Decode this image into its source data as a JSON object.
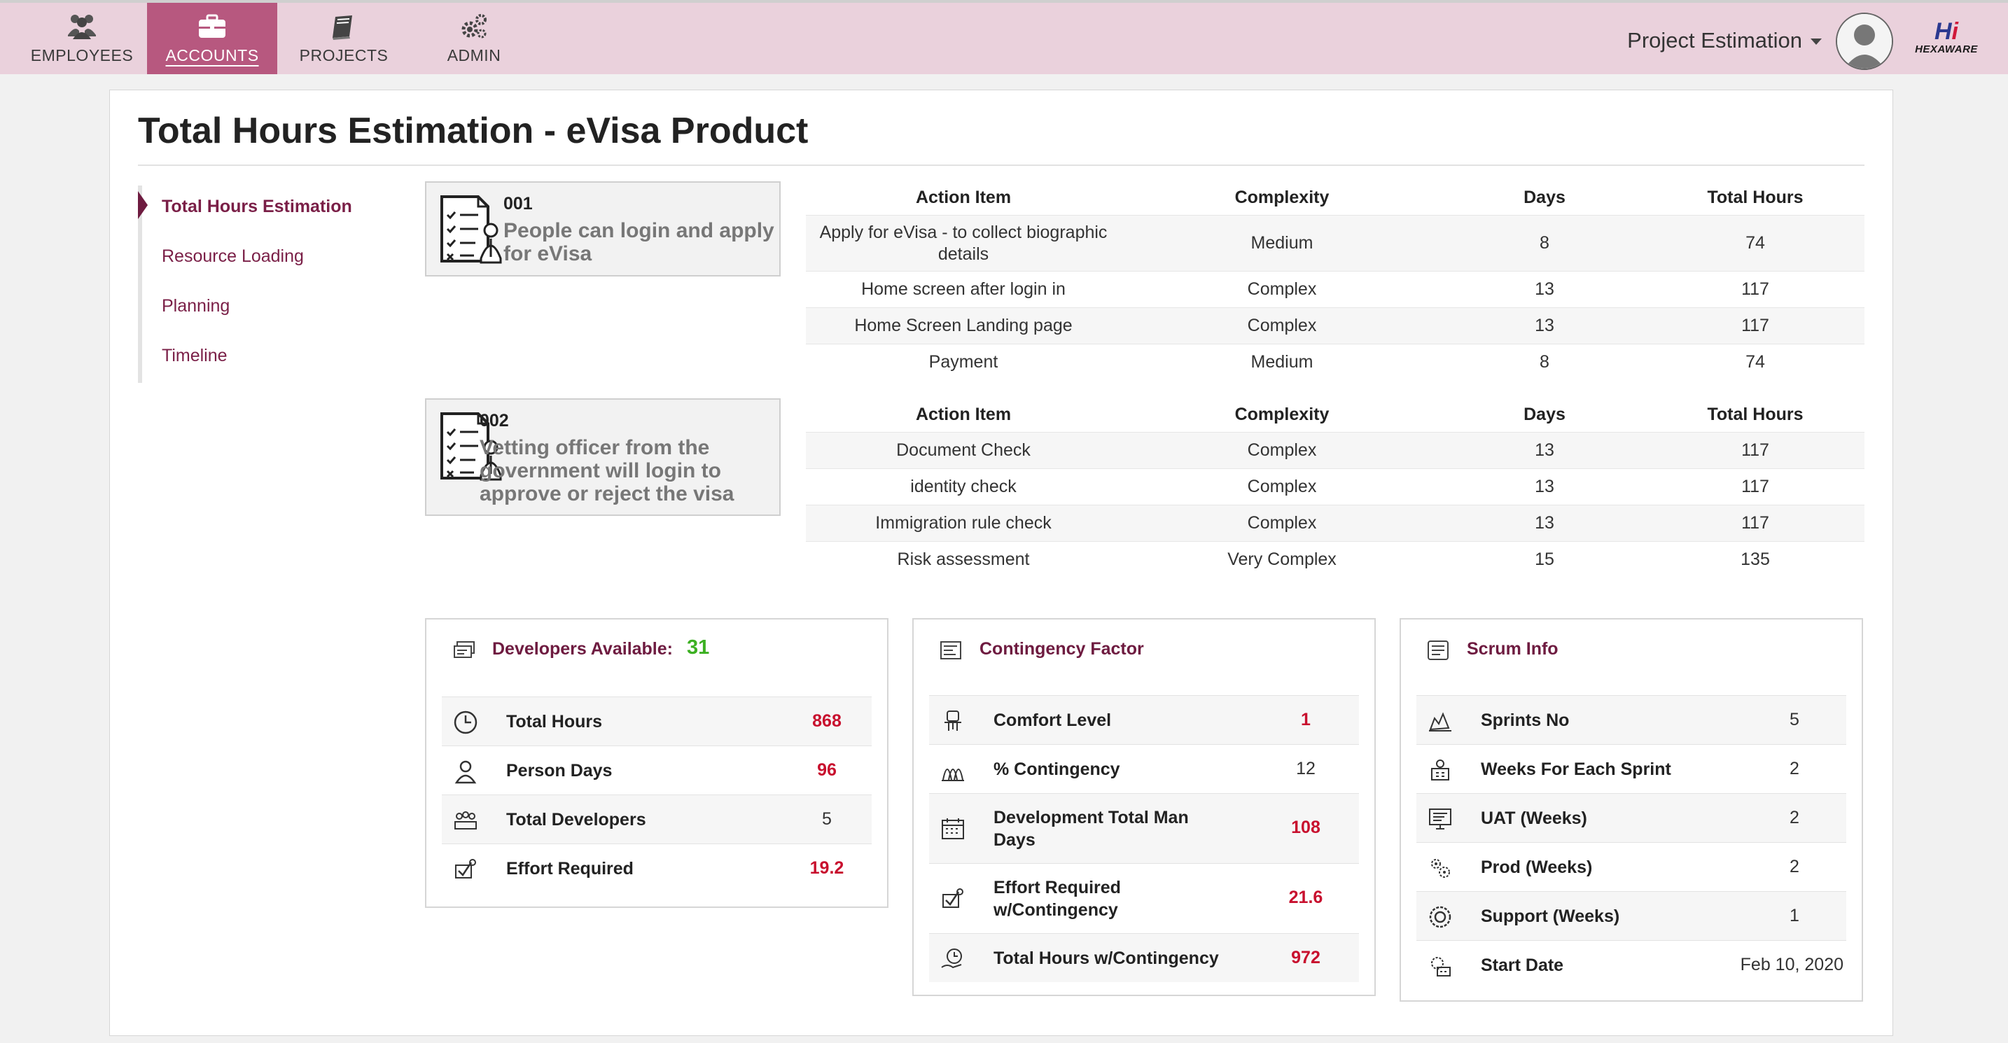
{
  "nav": {
    "tabs": [
      {
        "label": "EMPLOYEES",
        "icon": "people-icon"
      },
      {
        "label": "ACCOUNTS",
        "icon": "briefcase-icon",
        "active": true
      },
      {
        "label": "PROJECTS",
        "icon": "book-icon"
      },
      {
        "label": "ADMIN",
        "icon": "gears-icon"
      }
    ],
    "project_select": "Project Estimation",
    "logo": {
      "mark_h": "H",
      "mark_i": "i",
      "text": "HEXAWARE"
    }
  },
  "page": {
    "title": "Total Hours Estimation - eVisa Product"
  },
  "sidenav": {
    "items": [
      {
        "label": "Total Hours Estimation",
        "active": true
      },
      {
        "label": "Resource Loading"
      },
      {
        "label": "Planning"
      },
      {
        "label": "Timeline"
      }
    ]
  },
  "scenarios": [
    {
      "number": "001",
      "text": "People can login and apply for eVisa"
    },
    {
      "number": "002",
      "text": "Vetting officer from the government will login to approve or reject the visa"
    }
  ],
  "tables": {
    "headers": [
      "Action Item",
      "Complexity",
      "Days",
      "Total Hours"
    ],
    "table1": [
      [
        "Apply for eVisa - to collect biographic details",
        "Medium",
        "8",
        "74"
      ],
      [
        "Home screen after login in",
        "Complex",
        "13",
        "117"
      ],
      [
        "Home Screen Landing page",
        "Complex",
        "13",
        "117"
      ],
      [
        "Payment",
        "Medium",
        "8",
        "74"
      ]
    ],
    "table2": [
      [
        "Document Check",
        "Complex",
        "13",
        "117"
      ],
      [
        "identity check",
        "Complex",
        "13",
        "117"
      ],
      [
        "Immigration rule check",
        "Complex",
        "13",
        "117"
      ],
      [
        "Risk assessment",
        "Very Complex",
        "15",
        "135"
      ]
    ]
  },
  "panels": {
    "developers": {
      "title": "Developers Available:",
      "value": "31",
      "rows": [
        {
          "label": "Total Hours",
          "value": "868",
          "icon": "clock-icon"
        },
        {
          "label": "Person Days",
          "value": "96",
          "icon": "person-icon"
        },
        {
          "label": "Total Developers",
          "value": "5",
          "icon": "team-icon"
        },
        {
          "label": "Effort Required",
          "value": "19.2",
          "icon": "effort-icon"
        }
      ]
    },
    "contingency": {
      "title": "Contingency Factor",
      "rows": [
        {
          "label": "Comfort Level",
          "value": "1",
          "icon": "chair-icon"
        },
        {
          "label": "% Contingency",
          "value": "12",
          "icon": "chart-icon"
        },
        {
          "label": "Development Total Man Days",
          "value": "108",
          "icon": "calendar-icon"
        },
        {
          "label": "Effort Required w/Contingency",
          "value": "21.6",
          "icon": "effort-icon"
        },
        {
          "label": "Total Hours w/Contingency",
          "value": "972",
          "icon": "hours-icon"
        }
      ]
    },
    "scrum": {
      "title": "Scrum Info",
      "rows": [
        {
          "label": "Sprints No",
          "value": "5",
          "icon": "sprint-icon"
        },
        {
          "label": "Weeks For Each Sprint",
          "value": "2",
          "icon": "weeks-icon"
        },
        {
          "label": "UAT (Weeks)",
          "value": "2",
          "icon": "monitor-icon"
        },
        {
          "label": "Prod (Weeks)",
          "value": "2",
          "icon": "prod-icon"
        },
        {
          "label": "Support (Weeks)",
          "value": "1",
          "icon": "support-icon"
        },
        {
          "label": "Start Date",
          "value": "Feb 10, 2020",
          "icon": "start-icon"
        }
      ]
    }
  },
  "colors": {
    "nav_bg": "#ead1dc",
    "nav_active": "#b7587f",
    "accent": "#6e1b40",
    "highlight": "#c8102e",
    "green": "#3cb022"
  }
}
